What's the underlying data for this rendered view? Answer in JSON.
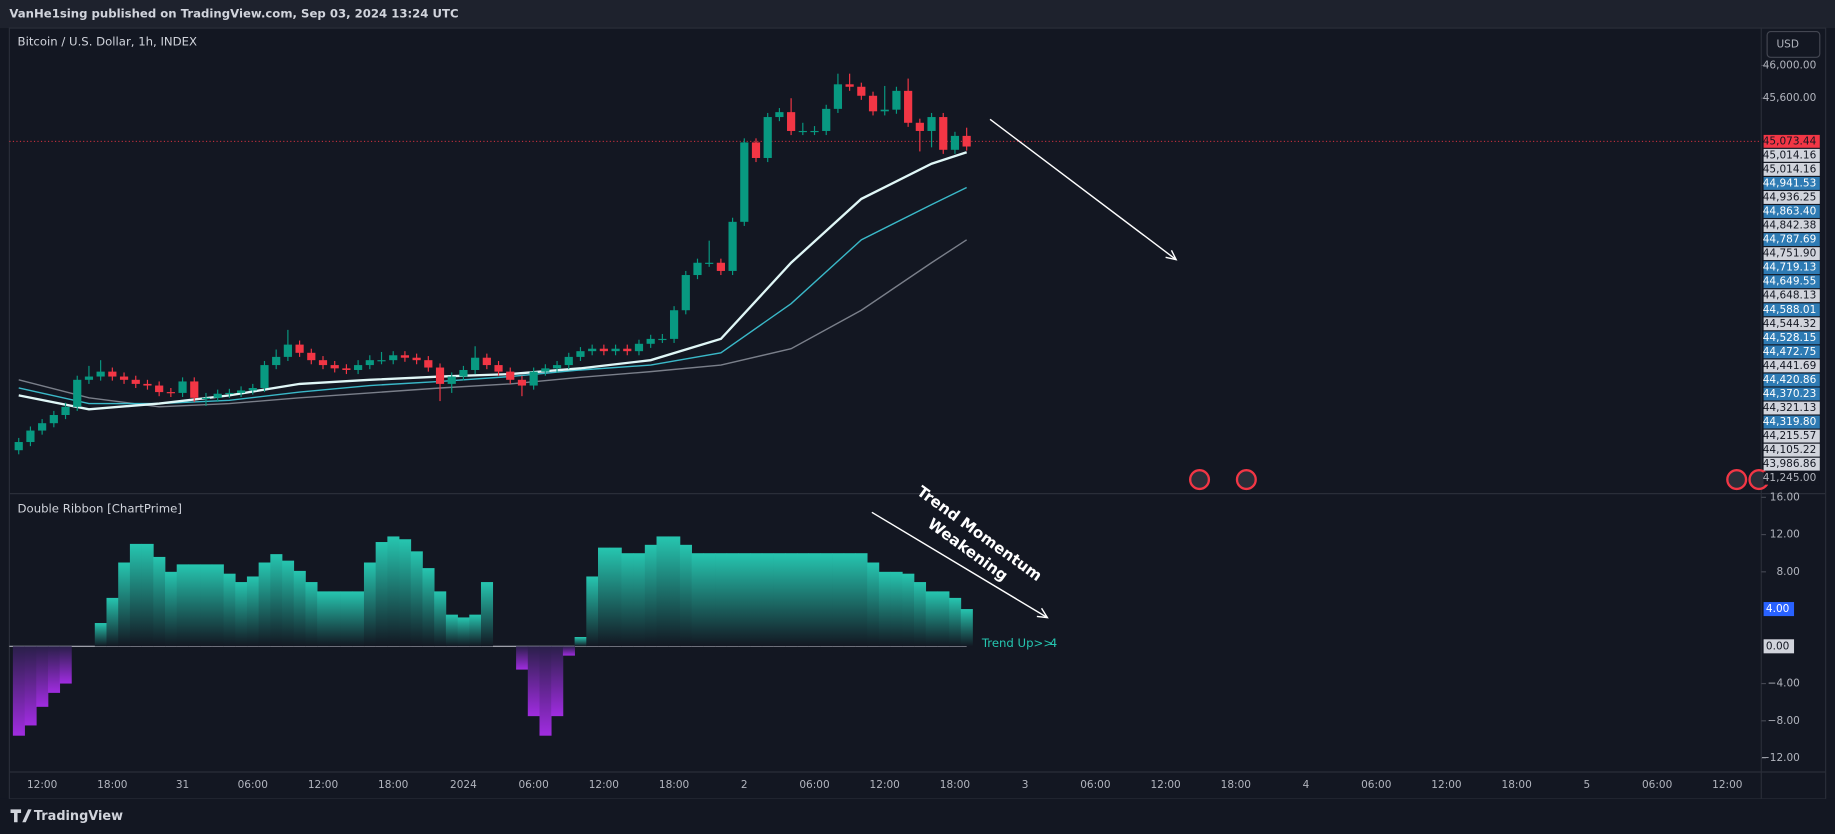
{
  "header": {
    "published": "VanHe1sing published on TradingView.com, Sep 03, 2024 13:24 UTC"
  },
  "footer": {
    "brand": "TradingView"
  },
  "chart_data": [
    {
      "type": "candlestick",
      "title": "Bitcoin / U.S. Dollar, 1h, INDEX",
      "currency": "USD",
      "up_color": "#089981",
      "down_color": "#f23645",
      "x": [
        0,
        1,
        2,
        3,
        4,
        5,
        6,
        7,
        8,
        9,
        10,
        11,
        12,
        13,
        14,
        15,
        16,
        17,
        18,
        19,
        20,
        21,
        22,
        23,
        24,
        25,
        26,
        27,
        28,
        29,
        30,
        31,
        32,
        33,
        34,
        35,
        36,
        37,
        38,
        39,
        40,
        41,
        42,
        43,
        44,
        45,
        46,
        47,
        48,
        49,
        50,
        51,
        52,
        53,
        54,
        55,
        56,
        57,
        58,
        59,
        60,
        61,
        62,
        63,
        64,
        65,
        66,
        67,
        68,
        69,
        70,
        71,
        72,
        73,
        74,
        75,
        76,
        77,
        78,
        79,
        80,
        81
      ],
      "open": [
        41300,
        41400,
        41540,
        41630,
        41730,
        41830,
        42160,
        42200,
        42260,
        42200,
        42160,
        42110,
        42090,
        42010,
        42000,
        42140,
        41940,
        41940,
        41990,
        42000,
        42030,
        42060,
        42340,
        42440,
        42590,
        42490,
        42400,
        42340,
        42300,
        42280,
        42340,
        42400,
        42400,
        42460,
        42430,
        42400,
        42310,
        42110,
        42200,
        42280,
        42430,
        42340,
        42260,
        42160,
        42090,
        42260,
        42300,
        42340,
        42440,
        42510,
        42540,
        42510,
        42540,
        42510,
        42600,
        42660,
        42660,
        43010,
        43440,
        43590,
        43590,
        43490,
        44090,
        45060,
        44870,
        45370,
        45430,
        45200,
        45200,
        45200,
        45470,
        45770,
        45740,
        45630,
        45440,
        45460,
        45690,
        45300,
        45200,
        45370,
        44970,
        45140
      ],
      "high": [
        41450,
        41590,
        41680,
        41780,
        41880,
        42210,
        42330,
        42400,
        42310,
        42250,
        42210,
        42160,
        42140,
        42060,
        42190,
        42190,
        42000,
        42040,
        42050,
        42080,
        42110,
        42390,
        42530,
        42770,
        42640,
        42540,
        42450,
        42390,
        42350,
        42400,
        42460,
        42500,
        42510,
        42510,
        42480,
        42450,
        42360,
        42250,
        42330,
        42570,
        42480,
        42390,
        42310,
        42210,
        42310,
        42350,
        42390,
        42490,
        42560,
        42590,
        42590,
        42590,
        42590,
        42650,
        42710,
        42720,
        43060,
        43490,
        43640,
        43860,
        43640,
        44140,
        45110,
        45110,
        45420,
        45480,
        45600,
        45300,
        45260,
        45520,
        45900,
        45900,
        45790,
        45680,
        45750,
        45740,
        45840,
        45350,
        45420,
        45420,
        45190,
        45240
      ],
      "low": [
        41250,
        41350,
        41490,
        41580,
        41680,
        41780,
        42110,
        42150,
        42150,
        42110,
        42060,
        42040,
        41960,
        41950,
        41950,
        41890,
        41840,
        41890,
        41940,
        41950,
        41980,
        42010,
        42290,
        42390,
        42440,
        42350,
        42290,
        42250,
        42230,
        42230,
        42290,
        42350,
        42350,
        42380,
        42350,
        42260,
        41900,
        42000,
        42150,
        42230,
        42290,
        42210,
        42110,
        41960,
        42040,
        42210,
        42250,
        42290,
        42390,
        42460,
        42460,
        42460,
        42460,
        42460,
        42550,
        42610,
        42610,
        42960,
        43390,
        43540,
        43440,
        43440,
        44040,
        44820,
        44820,
        45320,
        45150,
        45150,
        45150,
        45150,
        45420,
        45690,
        45580,
        45390,
        45390,
        45410,
        45250,
        44950,
        45000,
        44920,
        44920,
        44960
      ],
      "close": [
        41400,
        41540,
        41630,
        41730,
        41830,
        42160,
        42200,
        42260,
        42200,
        42160,
        42110,
        42090,
        42010,
        42000,
        42140,
        41940,
        41940,
        41990,
        42000,
        42030,
        42060,
        42340,
        42440,
        42590,
        42490,
        42400,
        42340,
        42300,
        42280,
        42340,
        42400,
        42400,
        42460,
        42430,
        42400,
        42310,
        42110,
        42200,
        42280,
        42430,
        42340,
        42260,
        42160,
        42090,
        42260,
        42300,
        42340,
        42440,
        42510,
        42540,
        42510,
        42540,
        42510,
        42600,
        42660,
        42660,
        43010,
        43440,
        43590,
        43590,
        43490,
        44090,
        45060,
        44870,
        45370,
        45430,
        45200,
        45200,
        45200,
        45470,
        45770,
        45740,
        45630,
        45440,
        45460,
        45690,
        45300,
        45200,
        45370,
        44970,
        45140,
        45010
      ],
      "ribbon": {
        "x": [
          0,
          6,
          12,
          18,
          24,
          30,
          36,
          42,
          48,
          54,
          60,
          66,
          72,
          78,
          81
        ],
        "lines": [
          {
            "color": "#e0f7f7",
            "values": [
              41970,
              41800,
              41870,
              41970,
              42110,
              42160,
              42200,
              42230,
              42300,
              42400,
              42660,
              43590,
              44370,
              44800,
              44940
            ]
          },
          {
            "color": "#3ab8c8",
            "values": [
              42060,
              41870,
              41870,
              41910,
              42010,
              42090,
              42140,
              42200,
              42280,
              42340,
              42490,
              43090,
              43870,
              44300,
              44510
            ]
          },
          {
            "color": "#7a7f8a",
            "values": [
              42160,
              41940,
              41830,
              41870,
              41940,
              42000,
              42060,
              42110,
              42190,
              42260,
              42340,
              42540,
              43010,
              43590,
              43870
            ]
          }
        ]
      },
      "price_labels": [
        {
          "value": 45073.44,
          "label": "45,073.44",
          "color": "#f23645"
        },
        {
          "value": 45014.16,
          "label": "45,014.16",
          "color": "#d1d4dc"
        },
        {
          "value": 45014.16,
          "label": "45,014.16",
          "color": "#d1d4dc"
        },
        {
          "value": 44941.53,
          "label": "44,941.53",
          "color": "#2e7bb4"
        },
        {
          "value": 44936.25,
          "label": "44,936.25",
          "color": "#d1d4dc"
        },
        {
          "value": 44863.4,
          "label": "44,863.40",
          "color": "#2e7bb4"
        },
        {
          "value": 44842.38,
          "label": "44,842.38",
          "color": "#d1d4dc"
        },
        {
          "value": 44787.69,
          "label": "44,787.69",
          "color": "#2e7bb4"
        },
        {
          "value": 44751.9,
          "label": "44,751.90",
          "color": "#d1d4dc"
        },
        {
          "value": 44719.13,
          "label": "44,719.13",
          "color": "#2e7bb4"
        },
        {
          "value": 44649.55,
          "label": "44,649.55",
          "color": "#2e7bb4"
        },
        {
          "value": 44648.13,
          "label": "44,648.13",
          "color": "#d1d4dc"
        },
        {
          "value": 44588.01,
          "label": "44,588.01",
          "color": "#2e7bb4"
        },
        {
          "value": 44544.32,
          "label": "44,544.32",
          "color": "#d1d4dc"
        },
        {
          "value": 44528.15,
          "label": "44,528.15",
          "color": "#2e7bb4"
        },
        {
          "value": 44472.75,
          "label": "44,472.75",
          "color": "#2e7bb4"
        },
        {
          "value": 44441.69,
          "label": "44,441.69",
          "color": "#d1d4dc"
        },
        {
          "value": 44420.86,
          "label": "44,420.86",
          "color": "#2e7bb4"
        },
        {
          "value": 44370.23,
          "label": "44,370.23",
          "color": "#2e7bb4"
        },
        {
          "value": 44321.13,
          "label": "44,321.13",
          "color": "#d1d4dc"
        },
        {
          "value": 44319.8,
          "label": "44,319.80",
          "color": "#2e7bb4"
        },
        {
          "value": 44215.57,
          "label": "44,215.57",
          "color": "#d1d4dc"
        },
        {
          "value": 44105.22,
          "label": "44,105.22",
          "color": "#d1d4dc"
        },
        {
          "value": 43986.86,
          "label": "43,986.86",
          "color": "#d1d4dc"
        },
        {
          "value": 41245.0,
          "label": "41,245.00",
          "color": "#131722"
        }
      ],
      "xlim": [
        -0.8,
        148.9
      ],
      "xticks": [
        {
          "value": 2,
          "label": "12:00"
        },
        {
          "value": 8,
          "label": "18:00"
        },
        {
          "value": 14,
          "label": "31"
        },
        {
          "value": 20,
          "label": "06:00"
        },
        {
          "value": 26,
          "label": "12:00"
        },
        {
          "value": 32,
          "label": "18:00"
        },
        {
          "value": 38,
          "label": "2024"
        },
        {
          "value": 44,
          "label": "06:00"
        },
        {
          "value": 50,
          "label": "12:00"
        },
        {
          "value": 56,
          "label": "18:00"
        },
        {
          "value": 62,
          "label": "2"
        },
        {
          "value": 68,
          "label": "06:00"
        },
        {
          "value": 74,
          "label": "12:00"
        },
        {
          "value": 80,
          "label": "18:00"
        },
        {
          "value": 86,
          "label": "3"
        },
        {
          "value": 92,
          "label": "06:00"
        },
        {
          "value": 98,
          "label": "12:00"
        },
        {
          "value": 104,
          "label": "18:00"
        },
        {
          "value": 110,
          "label": "4"
        },
        {
          "value": 116,
          "label": "06:00"
        },
        {
          "value": 122,
          "label": "12:00"
        },
        {
          "value": 128,
          "label": "18:00"
        },
        {
          "value": 134,
          "label": "5"
        },
        {
          "value": 140,
          "label": "06:00"
        },
        {
          "value": 146,
          "label": "12:00"
        }
      ],
      "ylim": [
        40784,
        46457
      ],
      "yticks": [
        {
          "value": 46000,
          "label": "46,000.00"
        },
        {
          "value": 45600,
          "label": "45,600.00"
        }
      ]
    },
    {
      "type": "bar",
      "title": "Double Ribbon [ChartPrime]",
      "positive_color": "#26c6b0",
      "negative_color": "#a02ce0",
      "values": [
        -9.6,
        -8.5,
        -6.5,
        -5.0,
        -4.0,
        0,
        0,
        2.5,
        5.2,
        9.0,
        11.0,
        11.0,
        9.6,
        8.0,
        8.8,
        8.8,
        8.8,
        8.8,
        7.8,
        6.9,
        7.5,
        9.0,
        9.9,
        9.2,
        8.1,
        6.9,
        5.9,
        5.9,
        5.9,
        5.9,
        9.0,
        11.2,
        11.8,
        11.5,
        10.2,
        8.4,
        5.9,
        3.4,
        3.1,
        3.4,
        6.9,
        null,
        null,
        -2.5,
        -7.5,
        -9.6,
        -7.5,
        -1.0,
        1.0,
        7.5,
        10.6,
        10.6,
        10.0,
        10.0,
        10.9,
        11.8,
        11.8,
        10.9,
        10.0,
        10.0,
        10,
        10,
        10,
        10,
        10,
        10,
        10,
        10,
        10,
        10,
        10,
        10,
        10,
        9.0,
        8.0,
        8.0,
        7.8,
        6.9,
        5.9,
        5.9,
        5.2,
        4.0
      ],
      "current_value": {
        "value": 4,
        "label": "4.00"
      },
      "trend_label": "Trend Up>>",
      "trend_value": 4,
      "annotation": [
        "Trend Momentum",
        "Weakening"
      ],
      "ylim": [
        -13.5,
        16.4
      ],
      "yticks": [
        {
          "value": 16,
          "label": "16.00"
        },
        {
          "value": 12,
          "label": "12.00"
        },
        {
          "value": 8,
          "label": "8.00"
        },
        {
          "value": 0,
          "label": "0.00"
        },
        {
          "value": -4,
          "label": "−4.00"
        },
        {
          "value": -8,
          "label": "−8.00"
        },
        {
          "value": -12,
          "label": "−12.00"
        }
      ]
    }
  ]
}
